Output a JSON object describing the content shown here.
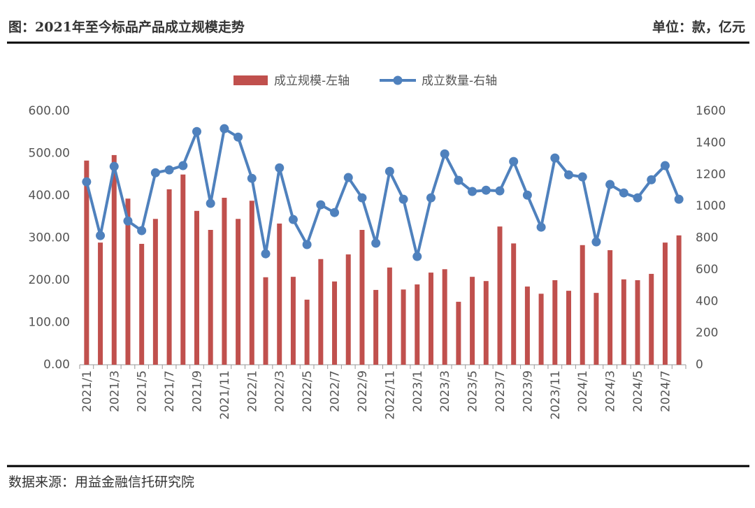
{
  "chart_data": {
    "type": "bar",
    "title": "图：2021年至今标品产品成立规模走势",
    "unit_note": "单位：款，亿元",
    "source": "数据来源：用益金融信托研究院",
    "categories": [
      "2021/1",
      null,
      "2021/3",
      null,
      "2021/5",
      null,
      "2021/7",
      null,
      "2021/9",
      null,
      "2021/11",
      null,
      "2022/1",
      null,
      "2022/3",
      null,
      "2022/5",
      null,
      "2022/7",
      null,
      "2022/9",
      null,
      "2022/11",
      null,
      "2023/1",
      null,
      "2023/3",
      null,
      "2023/5",
      null,
      "2023/7",
      null,
      "2023/9",
      null,
      "2023/11",
      null,
      "2024/1",
      null,
      "2024/3",
      null,
      "2024/5",
      null,
      "2024/7",
      null
    ],
    "series": [
      {
        "name": "成立规模-左轴",
        "type": "bar",
        "color": "#c0504d",
        "values": [
          483,
          289,
          496,
          393,
          286,
          345,
          415,
          450,
          364,
          319,
          395,
          345,
          388,
          207,
          334,
          208,
          154,
          250,
          197,
          261,
          319,
          177,
          230,
          178,
          190,
          218,
          226,
          149,
          208,
          198,
          327,
          287,
          185,
          168,
          200,
          175,
          283,
          170,
          271,
          202,
          200,
          215,
          289,
          306
        ]
      },
      {
        "name": "成立数量-右轴",
        "type": "line",
        "axis": "y2",
        "color": "#4f81bd",
        "values": [
          1154,
          815,
          1251,
          907,
          846,
          1211,
          1229,
          1256,
          1471,
          1018,
          1489,
          1436,
          1176,
          700,
          1242,
          916,
          758,
          1009,
          960,
          1181,
          1053,
          767,
          1220,
          1044,
          683,
          1053,
          1330,
          1163,
          1093,
          1101,
          1097,
          1282,
          1070,
          868,
          1304,
          1198,
          1185,
          775,
          1137,
          1084,
          1053,
          1167,
          1256,
          1044
        ]
      }
    ],
    "ylim": [
      0,
      600
    ],
    "yticks": [
      {
        "value": 0,
        "label": "0.00"
      },
      {
        "value": 100,
        "label": "100.00"
      },
      {
        "value": 200,
        "label": "200.00"
      },
      {
        "value": 300,
        "label": "300.00"
      },
      {
        "value": 400,
        "label": "400.00"
      },
      {
        "value": 500,
        "label": "500.00"
      },
      {
        "value": 600,
        "label": "600.00"
      }
    ],
    "y2lim": [
      0,
      1600
    ],
    "y2ticks": [
      0,
      200,
      400,
      600,
      800,
      1000,
      1200,
      1400,
      1600
    ],
    "grid": false,
    "legend": "top"
  }
}
